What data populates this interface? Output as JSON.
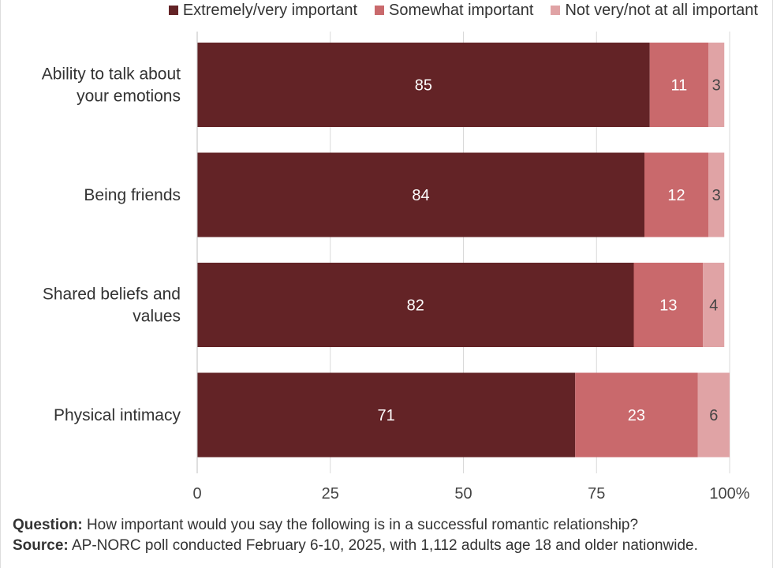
{
  "chart_data": {
    "type": "bar",
    "orientation": "horizontal",
    "stacked": true,
    "categories": [
      [
        "Ability to talk about",
        "your emotions"
      ],
      [
        "Being friends"
      ],
      [
        "Shared beliefs and",
        "values"
      ],
      [
        "Physical intimacy"
      ]
    ],
    "series": [
      {
        "name": "Extremely/very important",
        "color": "#632326",
        "label_color": "#ffffff",
        "values": [
          85,
          84,
          82,
          71
        ]
      },
      {
        "name": "Somewhat important",
        "color": "#c9696c",
        "label_color": "#ffffff",
        "values": [
          11,
          12,
          13,
          23
        ]
      },
      {
        "name": "Not very/not at all important",
        "color": "#e0a3a5",
        "label_color": "#444444",
        "values": [
          3,
          3,
          4,
          6
        ]
      }
    ],
    "xlim": [
      0,
      100
    ],
    "x_ticks": [
      0,
      25,
      50,
      75,
      100
    ],
    "x_tick_labels": [
      "0",
      "25",
      "50",
      "75",
      "100%"
    ],
    "legend_position": "top-right",
    "grid": true
  },
  "footnote": {
    "question_label": "Question:",
    "question_text": "How important would you say the following is in a successful romantic relationship?",
    "source_label": "Source:",
    "source_text": "AP-NORC poll conducted February 6-10, 2025, with 1,112 adults age 18 and older nationwide."
  }
}
